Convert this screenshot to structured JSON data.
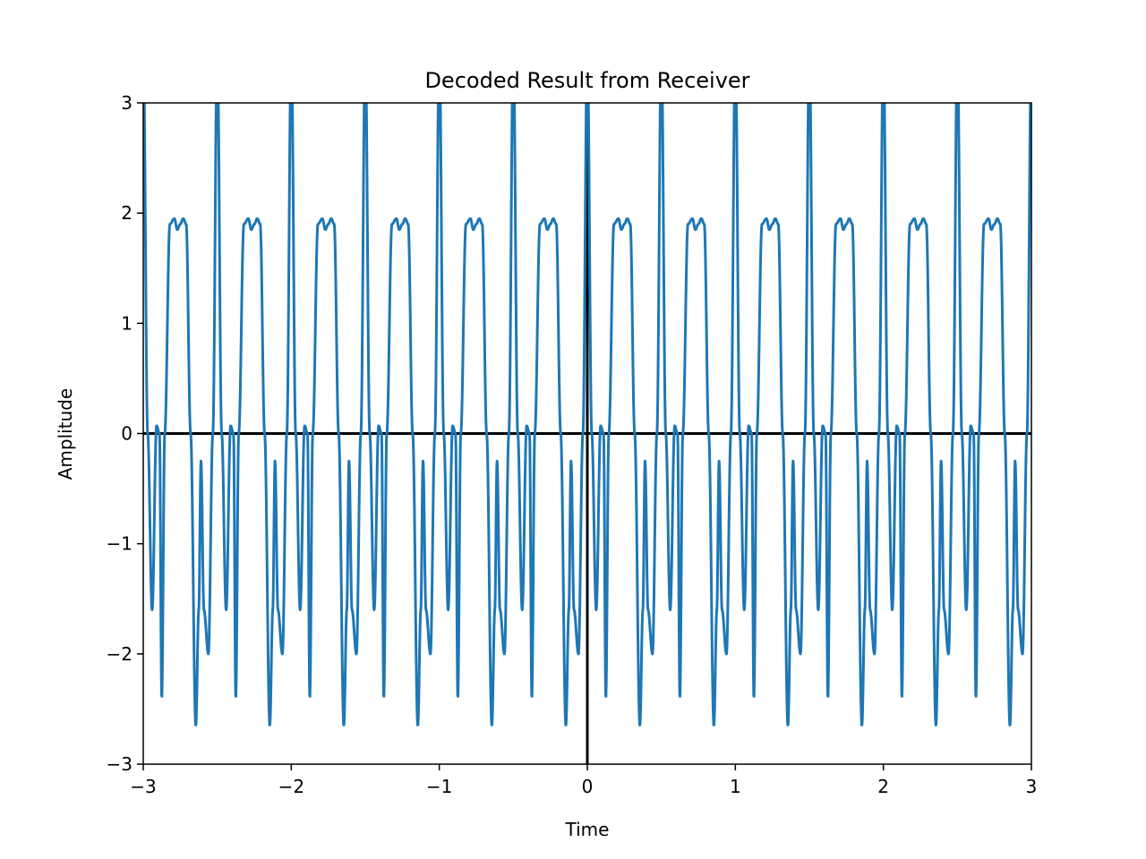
{
  "chart_data": {
    "type": "line",
    "title": "Decoded Result from Receiver",
    "xlabel": "Time",
    "ylabel": "Amplitude",
    "xlim": [
      -3,
      3
    ],
    "ylim": [
      -3,
      3
    ],
    "xticks": [
      -3,
      -2,
      -1,
      0,
      1,
      2,
      3
    ],
    "yticks": [
      -3,
      -2,
      -1,
      0,
      1,
      2,
      3
    ],
    "xtick_labels": [
      "−3",
      "−2",
      "−1",
      "0",
      "1",
      "2",
      "3"
    ],
    "ytick_labels": [
      "−3",
      "−2",
      "−1",
      "0",
      "1",
      "2",
      "3"
    ],
    "grid": false,
    "reference_lines": [
      {
        "orientation": "horizontal",
        "value": 0,
        "color": "#000000"
      },
      {
        "orientation": "vertical",
        "value": 0,
        "color": "#000000"
      }
    ],
    "series": [
      {
        "color": "#1f77b4",
        "period": 0.5,
        "description_points": {
          "x": [
            0.0,
            0.03,
            0.06,
            0.09,
            0.11,
            0.125,
            0.145,
            0.18,
            0.21,
            0.23,
            0.25,
            0.27,
            0.29,
            0.32,
            0.355,
            0.375,
            0.39,
            0.41,
            0.44,
            0.47,
            0.5
          ],
          "y": [
            3.5,
            0.0,
            -1.6,
            0.07,
            0.0,
            -2.4,
            0.0,
            1.9,
            1.95,
            1.85,
            1.9,
            1.95,
            1.9,
            0.0,
            -2.65,
            -1.6,
            -0.25,
            -1.6,
            -2.0,
            0.0,
            3.5
          ]
        }
      }
    ]
  },
  "colors": {
    "series": "#1f77b4",
    "axes": "#000000",
    "background": "#ffffff"
  }
}
